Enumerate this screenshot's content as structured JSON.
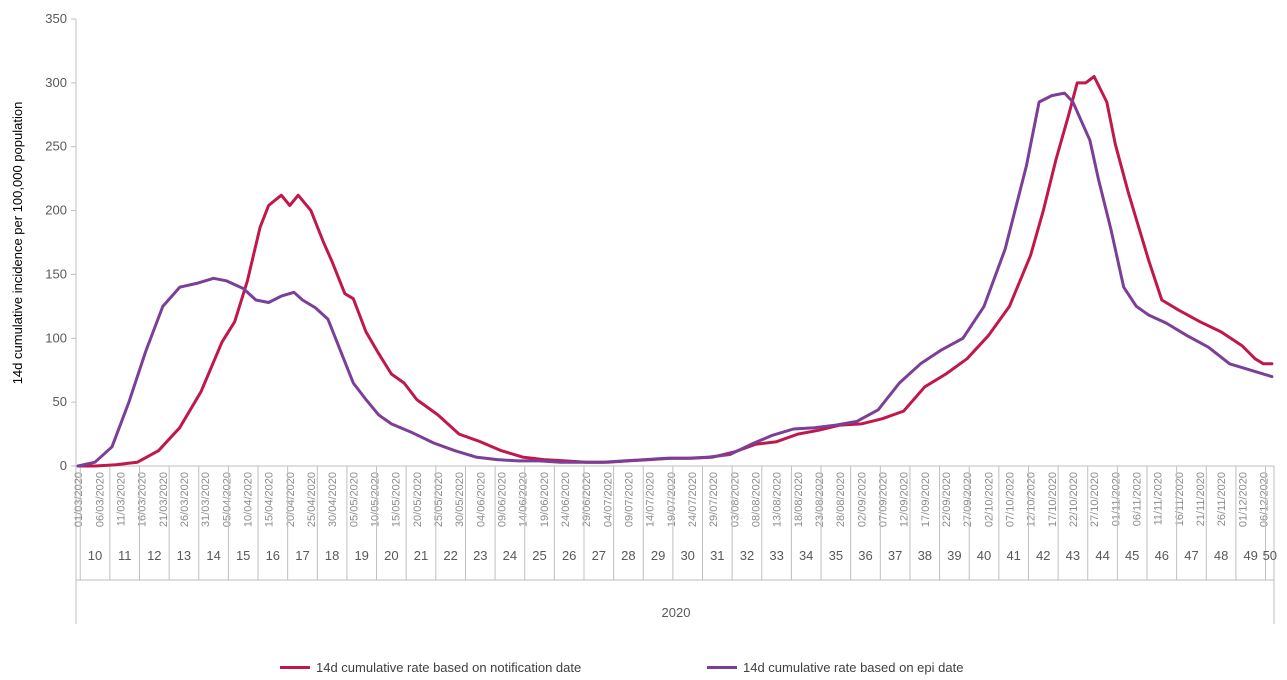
{
  "colors": {
    "notification": "#c0184a",
    "epi": "#7b3f98",
    "axis": "#bfbfbf",
    "text": "#595959"
  },
  "chart_data": {
    "type": "line",
    "title": "",
    "ylabel": "14d cumulative incidence per 100,000 population",
    "xlabel": "",
    "ylim": [
      0,
      350
    ],
    "yticks": [
      0,
      50,
      100,
      150,
      200,
      250,
      300,
      350
    ],
    "grid": false,
    "legend_position": "bottom",
    "year_label": "2020",
    "x_start": "2020-03-01",
    "x_end": "2020-12-08",
    "date_ticks": [
      "01/03/2020",
      "06/03/2020",
      "11/03/2020",
      "16/03/2020",
      "21/03/2020",
      "26/03/2020",
      "31/03/2020",
      "05/04/2020",
      "10/04/2020",
      "15/04/2020",
      "20/04/2020",
      "25/04/2020",
      "30/04/2020",
      "05/05/2020",
      "10/05/2020",
      "15/05/2020",
      "20/05/2020",
      "25/05/2020",
      "30/05/2020",
      "04/06/2020",
      "09/06/2020",
      "14/06/2020",
      "19/06/2020",
      "24/06/2020",
      "29/06/2020",
      "04/07/2020",
      "09/07/2020",
      "14/07/2020",
      "19/07/2020",
      "24/07/2020",
      "29/07/2020",
      "03/08/2020",
      "08/08/2020",
      "13/08/2020",
      "18/08/2020",
      "23/08/2020",
      "28/08/2020",
      "02/09/2020",
      "07/09/2020",
      "12/09/2020",
      "17/09/2020",
      "22/09/2020",
      "27/09/2020",
      "02/10/2020",
      "07/10/2020",
      "12/10/2020",
      "17/10/2020",
      "22/10/2020",
      "27/10/2020",
      "01/11/2020",
      "06/11/2020",
      "11/11/2020",
      "16/11/2020",
      "21/11/2020",
      "26/11/2020",
      "01/12/2020",
      "06/12/2020"
    ],
    "weeks": [
      "10",
      "11",
      "12",
      "13",
      "14",
      "15",
      "16",
      "17",
      "18",
      "19",
      "20",
      "21",
      "22",
      "23",
      "24",
      "25",
      "26",
      "27",
      "28",
      "29",
      "30",
      "31",
      "32",
      "33",
      "34",
      "35",
      "36",
      "37",
      "38",
      "39",
      "40",
      "41",
      "42",
      "43",
      "44",
      "45",
      "46",
      "47",
      "48",
      "49",
      "50"
    ],
    "series": [
      {
        "name": "14d cumulative rate based on notification date",
        "color": "#c0184a",
        "x": [
          "2020-03-01",
          "2020-03-05",
          "2020-03-10",
          "2020-03-15",
          "2020-03-20",
          "2020-03-25",
          "2020-03-30",
          "2020-04-04",
          "2020-04-07",
          "2020-04-10",
          "2020-04-13",
          "2020-04-15",
          "2020-04-18",
          "2020-04-20",
          "2020-04-22",
          "2020-04-25",
          "2020-04-28",
          "2020-04-30",
          "2020-05-03",
          "2020-05-05",
          "2020-05-08",
          "2020-05-11",
          "2020-05-14",
          "2020-05-17",
          "2020-05-20",
          "2020-05-25",
          "2020-05-30",
          "2020-06-04",
          "2020-06-09",
          "2020-06-14",
          "2020-06-19",
          "2020-06-24",
          "2020-06-29",
          "2020-07-04",
          "2020-07-09",
          "2020-07-14",
          "2020-07-19",
          "2020-07-24",
          "2020-07-29",
          "2020-08-03",
          "2020-08-08",
          "2020-08-13",
          "2020-08-18",
          "2020-08-23",
          "2020-08-28",
          "2020-09-02",
          "2020-09-07",
          "2020-09-12",
          "2020-09-17",
          "2020-09-22",
          "2020-09-27",
          "2020-10-02",
          "2020-10-07",
          "2020-10-12",
          "2020-10-15",
          "2020-10-18",
          "2020-10-21",
          "2020-10-23",
          "2020-10-25",
          "2020-10-27",
          "2020-10-30",
          "2020-11-01",
          "2020-11-04",
          "2020-11-06",
          "2020-11-09",
          "2020-11-12",
          "2020-11-16",
          "2020-11-21",
          "2020-11-26",
          "2020-12-01",
          "2020-12-04",
          "2020-12-06",
          "2020-12-08"
        ],
        "values": [
          0,
          0,
          1,
          3,
          12,
          30,
          58,
          97,
          113,
          145,
          187,
          204,
          212,
          204,
          212,
          200,
          175,
          160,
          135,
          131,
          105,
          88,
          72,
          65,
          52,
          40,
          25,
          19,
          12,
          7,
          5,
          4,
          3,
          3,
          4,
          5,
          6,
          6,
          7,
          11,
          17,
          19,
          25,
          28,
          32,
          33,
          37,
          43,
          62,
          72,
          84,
          102,
          125,
          165,
          200,
          240,
          275,
          300,
          300,
          305,
          285,
          252,
          215,
          193,
          160,
          130,
          122,
          113,
          105,
          94,
          84,
          80,
          80
        ]
      },
      {
        "name": "14d cumulative rate based on epi date",
        "color": "#7b3f98",
        "x": [
          "2020-03-01",
          "2020-03-05",
          "2020-03-09",
          "2020-03-13",
          "2020-03-17",
          "2020-03-21",
          "2020-03-25",
          "2020-03-29",
          "2020-04-02",
          "2020-04-05",
          "2020-04-09",
          "2020-04-12",
          "2020-04-15",
          "2020-04-18",
          "2020-04-21",
          "2020-04-23",
          "2020-04-26",
          "2020-04-29",
          "2020-05-02",
          "2020-05-05",
          "2020-05-08",
          "2020-05-11",
          "2020-05-14",
          "2020-05-19",
          "2020-05-24",
          "2020-05-29",
          "2020-06-03",
          "2020-06-08",
          "2020-06-13",
          "2020-06-18",
          "2020-06-23",
          "2020-06-28",
          "2020-07-03",
          "2020-07-08",
          "2020-07-13",
          "2020-07-18",
          "2020-07-23",
          "2020-07-28",
          "2020-08-02",
          "2020-08-07",
          "2020-08-12",
          "2020-08-17",
          "2020-08-22",
          "2020-08-27",
          "2020-09-01",
          "2020-09-06",
          "2020-09-11",
          "2020-09-16",
          "2020-09-21",
          "2020-09-26",
          "2020-10-01",
          "2020-10-06",
          "2020-10-11",
          "2020-10-14",
          "2020-10-17",
          "2020-10-20",
          "2020-10-22",
          "2020-10-24",
          "2020-10-26",
          "2020-10-28",
          "2020-10-31",
          "2020-11-03",
          "2020-11-06",
          "2020-11-09",
          "2020-11-13",
          "2020-11-18",
          "2020-11-23",
          "2020-11-28",
          "2020-12-03",
          "2020-12-08"
        ],
        "values": [
          0,
          3,
          15,
          50,
          90,
          125,
          140,
          143,
          147,
          145,
          139,
          130,
          128,
          133,
          136,
          130,
          124,
          115,
          90,
          65,
          52,
          40,
          33,
          26,
          18,
          12,
          7,
          5,
          4,
          4,
          3,
          3,
          3,
          4,
          5,
          6,
          6,
          7,
          9,
          17,
          24,
          29,
          30,
          32,
          35,
          44,
          65,
          80,
          91,
          100,
          125,
          170,
          235,
          285,
          290,
          292,
          285,
          270,
          255,
          225,
          185,
          140,
          125,
          118,
          112,
          102,
          93,
          80,
          75,
          70
        ]
      }
    ]
  },
  "legend": {
    "notification_label": "14d cumulative rate based on notification date",
    "epi_label": "14d cumulative rate based on epi date"
  }
}
